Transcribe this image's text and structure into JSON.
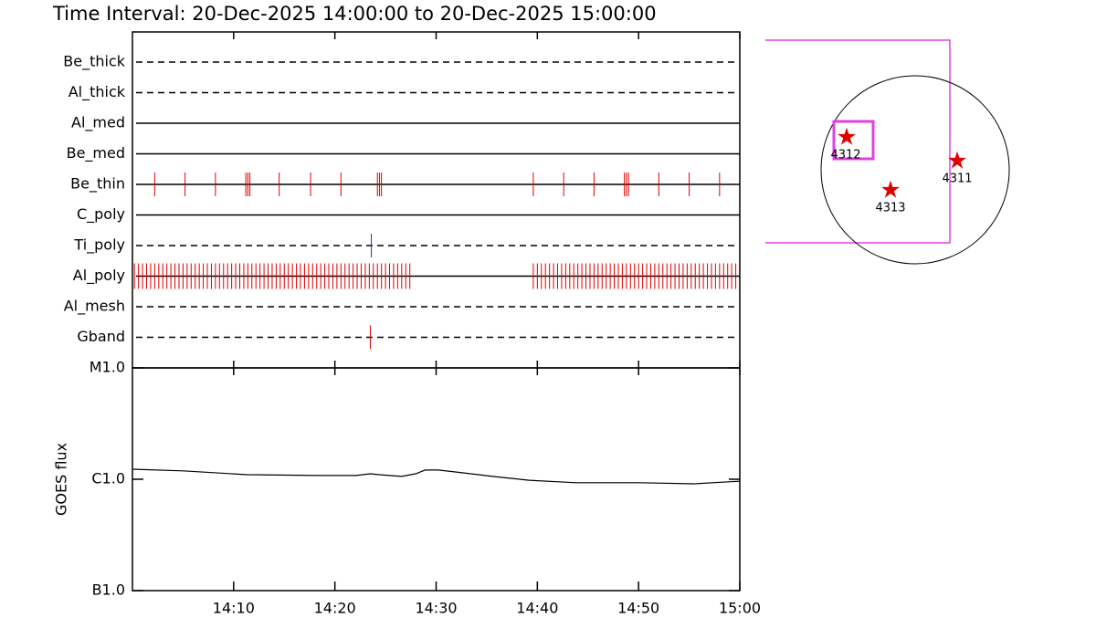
{
  "title": "Time Interval: 20-Dec-2025 14:00:00 to 20-Dec-2025 15:00:00",
  "chart_data": [
    {
      "type": "timeline",
      "xlim": [
        0,
        60
      ],
      "rows": [
        {
          "name": "Be_thick",
          "style": "dashed",
          "color": "#000000",
          "events": []
        },
        {
          "name": "Al_thick",
          "style": "dashed",
          "color": "#000000",
          "events": []
        },
        {
          "name": "Al_med",
          "style": "solid",
          "color": "#000000",
          "events": []
        },
        {
          "name": "Be_med",
          "style": "solid",
          "color": "#000000",
          "events": []
        },
        {
          "name": "Be_thin",
          "style": "solid",
          "color": "#e00000",
          "events": [
            2.2,
            5.2,
            8.2,
            11.2,
            11.4,
            11.6,
            14.5,
            17.6,
            20.6,
            24.2,
            24.4,
            24.6,
            39.6,
            42.6,
            45.6,
            48.6,
            48.8,
            49.0,
            52.0,
            55.0,
            58.0
          ]
        },
        {
          "name": "C_poly",
          "style": "solid",
          "color": "#000000",
          "events": []
        },
        {
          "name": "Ti_poly",
          "style": "dashed",
          "color": "#3030a0",
          "events": [
            23.6
          ]
        },
        {
          "name": "Al_poly",
          "style": "solid",
          "color": "#e00000",
          "events": [
            0.2,
            0.6,
            1.0,
            1.4,
            1.8,
            2.2,
            2.6,
            3.0,
            3.4,
            3.8,
            4.2,
            4.6,
            5.0,
            5.4,
            5.8,
            6.2,
            6.6,
            7.0,
            7.4,
            7.8,
            8.2,
            8.6,
            9.0,
            9.4,
            9.8,
            10.2,
            10.6,
            11.0,
            11.4,
            11.8,
            12.2,
            12.6,
            13.0,
            13.4,
            13.8,
            14.2,
            14.6,
            15.0,
            15.4,
            15.8,
            16.2,
            16.6,
            17.0,
            17.4,
            17.8,
            18.2,
            18.6,
            19.0,
            19.4,
            19.8,
            20.2,
            20.6,
            21.0,
            21.4,
            21.8,
            22.2,
            22.6,
            23.0,
            23.4,
            23.8,
            24.2,
            24.6,
            25.0,
            25.4,
            25.8,
            26.2,
            26.6,
            27.0,
            27.4,
            39.6,
            40.0,
            40.4,
            40.8,
            41.2,
            41.6,
            42.0,
            42.4,
            42.8,
            43.2,
            43.6,
            44.0,
            44.4,
            44.8,
            45.2,
            45.6,
            46.0,
            46.4,
            46.8,
            47.2,
            47.6,
            48.0,
            48.4,
            48.8,
            49.2,
            49.6,
            50.0,
            50.4,
            50.8,
            51.2,
            51.6,
            52.0,
            52.4,
            52.8,
            53.2,
            53.6,
            54.0,
            54.4,
            54.8,
            55.2,
            55.6,
            56.0,
            56.4,
            56.8,
            57.2,
            57.6,
            58.0,
            58.4,
            58.8,
            59.2,
            59.6
          ]
        },
        {
          "name": "Al_mesh",
          "style": "dashed",
          "color": "#000000",
          "events": []
        },
        {
          "name": "Gband",
          "style": "dashed",
          "color": "#e00000",
          "events": [
            23.5
          ]
        }
      ]
    },
    {
      "type": "line",
      "ylabel": "GOES flux",
      "log_scale": true,
      "color": "#000000",
      "xlim": [
        0,
        60
      ],
      "xticks": [
        {
          "value": 10,
          "label": "14:10"
        },
        {
          "value": 20,
          "label": "14:20"
        },
        {
          "value": 30,
          "label": "14:30"
        },
        {
          "value": 40,
          "label": "14:40"
        },
        {
          "value": 50,
          "label": "14:50"
        },
        {
          "value": 60,
          "label": "15:00"
        }
      ],
      "ylim": [
        1e-07,
        1e-05
      ],
      "yticks": [
        {
          "value": 1e-07,
          "label": "B1.0"
        },
        {
          "value": 1e-06,
          "label": "C1.0"
        },
        {
          "value": 1e-05,
          "label": "M1.0"
        }
      ],
      "x": [
        0,
        5.0,
        11.3,
        18.5,
        22.1,
        23.5,
        24.4,
        26.6,
        28.0,
        28.9,
        30.2,
        32.0,
        35.6,
        39.2,
        43.8,
        50.1,
        55.5,
        59.1,
        60
      ],
      "values": [
        1.23e-06,
        1.19e-06,
        1.1e-06,
        1.08e-06,
        1.08e-06,
        1.12e-06,
        1.1e-06,
        1.06e-06,
        1.12e-06,
        1.21e-06,
        1.21e-06,
        1.16e-06,
        1.06e-06,
        9.8e-07,
        9.3e-07,
        9.3e-07,
        9.1e-07,
        9.5e-07,
        9.6e-07
      ]
    }
  ],
  "map": {
    "regions": [
      {
        "label": "4312"
      },
      {
        "label": "4311"
      },
      {
        "label": "4313"
      }
    ]
  }
}
